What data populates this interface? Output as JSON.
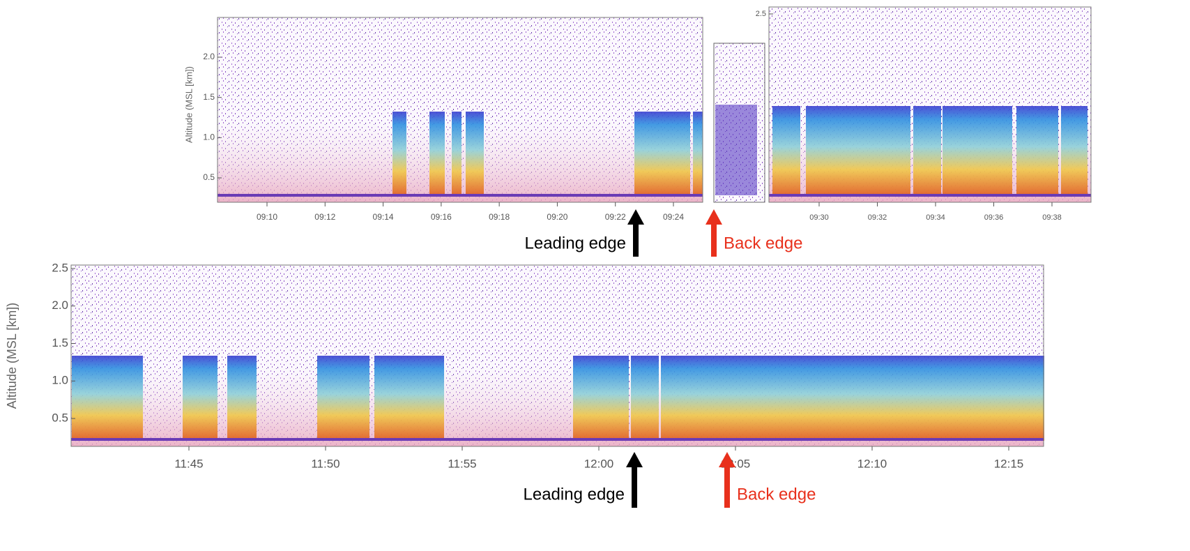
{
  "panels": [
    {
      "ylabel": "Altitude (MSL [km])",
      "yticks": [
        "2.0",
        "1.5",
        "1.0",
        "0.5"
      ],
      "xticks": [
        "09:10",
        "09:12",
        "09:14",
        "09:16",
        "09:18",
        "09:20",
        "09:22",
        "09:24"
      ]
    },
    {
      "yticks": [
        "2.5"
      ],
      "xticks": [
        "09:30",
        "09:32",
        "09:34",
        "09:36",
        "09:38"
      ]
    },
    {
      "ylabel": "Altitude (MSL [km])",
      "yticks": [
        "2.5",
        "2.0",
        "1.5",
        "1.0",
        "0.5"
      ],
      "xticks": [
        "11:45",
        "11:50",
        "11:55",
        "12:00",
        "12:05",
        "12:10",
        "12:15"
      ]
    }
  ],
  "annotations": {
    "top_leading": "Leading edge",
    "top_back": "Back edge",
    "bottom_leading": "Leading edge",
    "bottom_back": "Back edge"
  }
}
